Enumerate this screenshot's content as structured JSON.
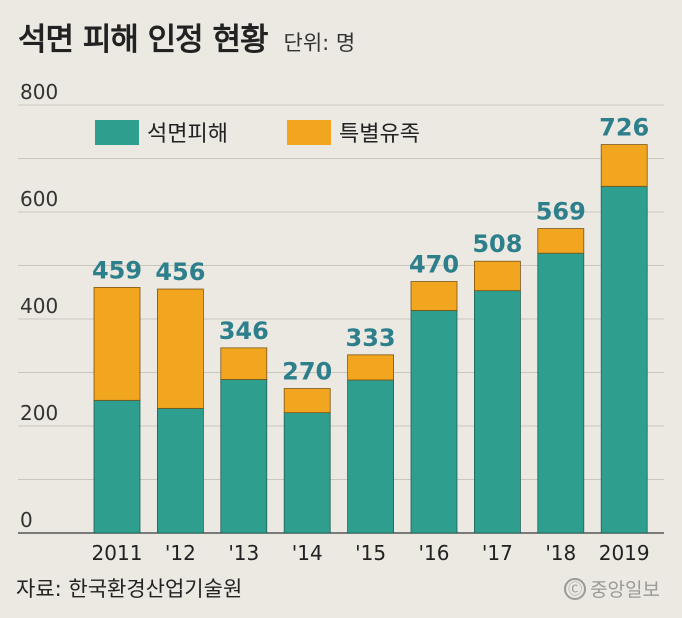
{
  "header": {
    "title": "석면 피해 인정 현황",
    "unit": "단위: 명"
  },
  "footer": {
    "source": "자료: 한국환경산업기술원",
    "logo_text": "중앙일보",
    "logo_icon": "circle-c"
  },
  "colors": {
    "background": "#ebe9e2",
    "asbestos": "#2e9e8f",
    "bereaved": "#f2a51f",
    "total_label": "#2e7f8c"
  },
  "chart_data": {
    "type": "bar",
    "stacked": true,
    "categories": [
      "2011",
      "'12",
      "'13",
      "'14",
      "'15",
      "'16",
      "'17",
      "'18",
      "2019"
    ],
    "series": [
      {
        "name": "석면피해",
        "values": [
          248,
          233,
          287,
          225,
          286,
          416,
          453,
          523,
          648
        ]
      },
      {
        "name": "특별유족",
        "values": [
          211,
          223,
          59,
          45,
          47,
          54,
          55,
          46,
          78
        ]
      }
    ],
    "totals": [
      459,
      456,
      346,
      270,
      333,
      470,
      508,
      569,
      726
    ],
    "ylim": [
      0,
      800
    ],
    "yticks": [
      0,
      200,
      400,
      600,
      800
    ],
    "grid": true,
    "legend_position": "top-left",
    "xlabel": "",
    "ylabel": ""
  }
}
